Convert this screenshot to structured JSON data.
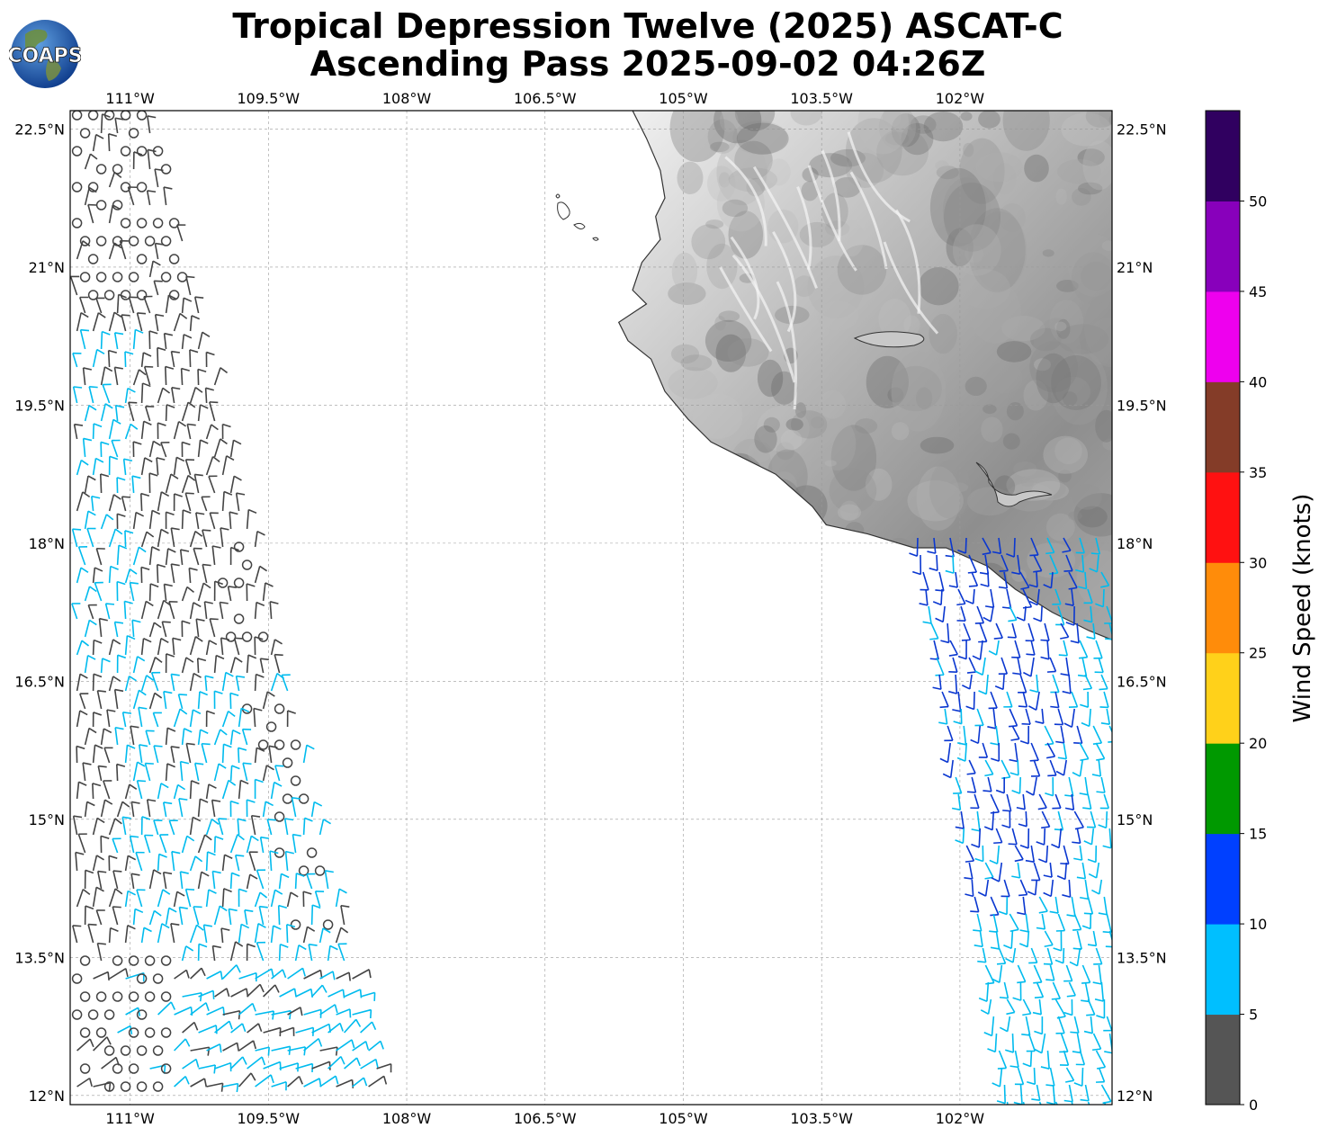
{
  "title": {
    "line1": "Tropical Depression Twelve (2025) ASCAT-C",
    "line2": "Ascending Pass 2025-09-02 04:26Z"
  },
  "logo": {
    "text": "COAPS"
  },
  "map": {
    "lon_range": [
      -111.65,
      -100.35
    ],
    "lat_range": [
      11.9,
      22.7
    ],
    "lon_ticks": [
      {
        "value": -111,
        "label": "111°W"
      },
      {
        "value": -109.5,
        "label": "109.5°W"
      },
      {
        "value": -108,
        "label": "108°W"
      },
      {
        "value": -106.5,
        "label": "106.5°W"
      },
      {
        "value": -105,
        "label": "105°W"
      },
      {
        "value": -103.5,
        "label": "103.5°W"
      },
      {
        "value": -102,
        "label": "102°W"
      }
    ],
    "lat_ticks": [
      {
        "value": 22.5,
        "label": "22.5°N"
      },
      {
        "value": 21,
        "label": "21°N"
      },
      {
        "value": 19.5,
        "label": "19.5°N"
      },
      {
        "value": 18,
        "label": "18°N"
      },
      {
        "value": 16.5,
        "label": "16.5°N"
      },
      {
        "value": 15,
        "label": "15°N"
      },
      {
        "value": 13.5,
        "label": "13.5°N"
      },
      {
        "value": 12,
        "label": "12°N"
      }
    ],
    "gridlines": true,
    "coastline": [
      [
        -105.55,
        22.7
      ],
      [
        -105.4,
        22.4
      ],
      [
        -105.25,
        22.05
      ],
      [
        -105.2,
        21.75
      ],
      [
        -105.3,
        21.55
      ],
      [
        -105.25,
        21.3
      ],
      [
        -105.45,
        21.05
      ],
      [
        -105.55,
        20.75
      ],
      [
        -105.4,
        20.6
      ],
      [
        -105.7,
        20.4
      ],
      [
        -105.6,
        20.2
      ],
      [
        -105.35,
        20.0
      ],
      [
        -105.2,
        19.65
      ],
      [
        -104.95,
        19.35
      ],
      [
        -104.7,
        19.1
      ],
      [
        -104.4,
        18.95
      ],
      [
        -104.0,
        18.75
      ],
      [
        -103.6,
        18.4
      ],
      [
        -103.45,
        18.2
      ],
      [
        -103.0,
        18.1
      ],
      [
        -102.5,
        17.95
      ],
      [
        -102.15,
        17.95
      ],
      [
        -101.7,
        17.75
      ],
      [
        -101.4,
        17.5
      ],
      [
        -101.0,
        17.25
      ],
      [
        -100.6,
        17.05
      ],
      [
        -100.35,
        16.95
      ]
    ],
    "wind_speed_key": {
      "label": "Wind Speed (knots)",
      "ticks": [
        "0",
        "5",
        "10",
        "15",
        "20",
        "25",
        "30",
        "35",
        "40",
        "45",
        "50"
      ],
      "colors": [
        "#555555",
        "#00bfff",
        "#0040ff",
        "#009900",
        "#ffd11a",
        "#ff8c0a",
        "#ff1111",
        "#843c28",
        "#ee00ee",
        "#8800bb",
        "#300060"
      ]
    },
    "barb_colors": {
      "calm": "#444444",
      "light": "#00bbee",
      "moderate": "#0a37d0"
    }
  }
}
